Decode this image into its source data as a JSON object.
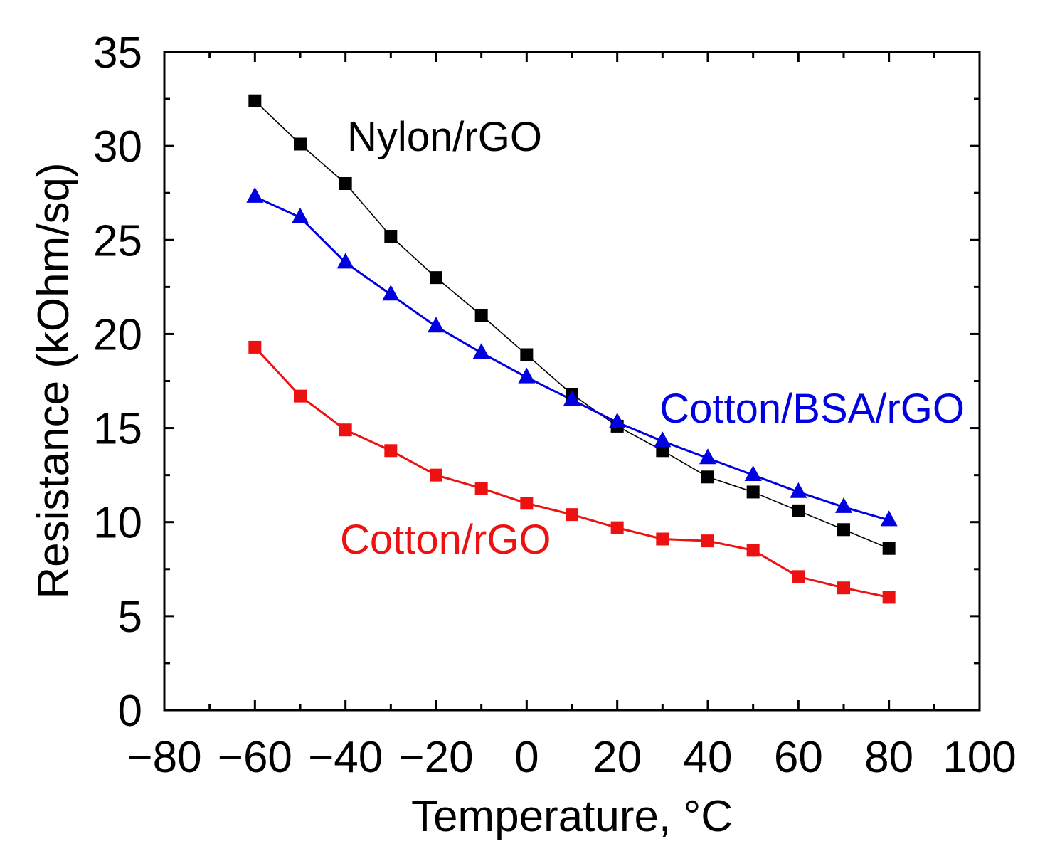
{
  "chart_data": {
    "type": "line",
    "xlabel": "Temperature, °C",
    "ylabel": "Resistance (kOhm/sq)",
    "xlim": [
      -80,
      100
    ],
    "ylim": [
      0,
      35
    ],
    "xticks": [
      -80,
      -60,
      -40,
      -20,
      0,
      20,
      40,
      60,
      80,
      100
    ],
    "xtick_labels": [
      "−80",
      "−60",
      "−40",
      "−20",
      "0",
      "20",
      "40",
      "60",
      "80",
      "100"
    ],
    "yticks": [
      0,
      5,
      10,
      15,
      20,
      25,
      30,
      35
    ],
    "ytick_labels": [
      "0",
      "5",
      "10",
      "15",
      "20",
      "25",
      "30",
      "35"
    ],
    "grid": false,
    "x": [
      -60,
      -50,
      -40,
      -30,
      -20,
      -10,
      0,
      10,
      20,
      30,
      40,
      50,
      60,
      70,
      80
    ],
    "series": [
      {
        "name": "Nylon/rGO",
        "marker": "square",
        "color": "#000000",
        "values": [
          32.4,
          30.1,
          28.0,
          25.2,
          23.0,
          21.0,
          18.9,
          16.8,
          15.1,
          13.8,
          12.4,
          11.6,
          10.6,
          9.6,
          8.6
        ]
      },
      {
        "name": "Cotton/BSA/rGO",
        "marker": "triangle",
        "color": "#0000e0",
        "values": [
          27.3,
          26.2,
          23.8,
          22.1,
          20.4,
          19.0,
          17.7,
          16.5,
          15.3,
          14.3,
          13.4,
          12.5,
          11.6,
          10.8,
          10.1
        ]
      },
      {
        "name": "Cotton/rGO",
        "marker": "square",
        "color": "#ee1111",
        "values": [
          19.3,
          16.7,
          14.9,
          13.8,
          12.5,
          11.8,
          11.0,
          10.4,
          9.7,
          9.1,
          9.0,
          8.5,
          7.1,
          6.5,
          6.0
        ]
      }
    ]
  }
}
